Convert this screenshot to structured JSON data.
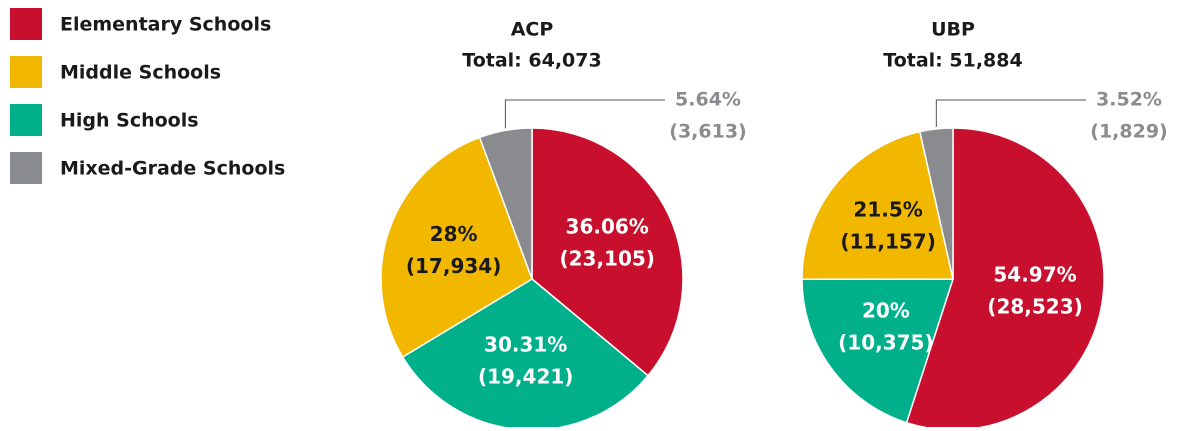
{
  "legend": {
    "items": [
      {
        "name": "Elementary Schools",
        "color": "#c8102e"
      },
      {
        "name": "Middle Schools",
        "color": "#f2b800"
      },
      {
        "name": "High Schools",
        "color": "#00b08b"
      },
      {
        "name": "Mixed-Grade Schools",
        "color": "#898b8e"
      }
    ]
  },
  "chart_data": [
    {
      "type": "pie",
      "title": "ACP",
      "subtitle": "Total: 64,073",
      "categories": [
        "Elementary Schools",
        "High Schools",
        "Middle Schools",
        "Mixed-Grade Schools"
      ],
      "values": [
        36.06,
        30.31,
        28,
        5.64
      ],
      "value_labels": [
        "36.06%",
        "30.31%",
        "28%",
        "5.64%"
      ],
      "counts": [
        23105,
        19421,
        17934,
        3613
      ],
      "count_labels": [
        "(23,105)",
        "(19,421)",
        "(17,934)",
        "(3,613)"
      ]
    },
    {
      "type": "pie",
      "title": "UBP",
      "subtitle": "Total: 51,884",
      "categories": [
        "Elementary Schools",
        "High Schools",
        "Middle Schools",
        "Mixed-Grade Schools"
      ],
      "values": [
        54.97,
        20,
        21.5,
        3.52
      ],
      "value_labels": [
        "54.97%",
        "20%",
        "21.5%",
        "3.52%"
      ],
      "counts": [
        28523,
        10375,
        11157,
        1829
      ],
      "count_labels": [
        "(28,523)",
        "(10,375)",
        "(11,157)",
        "(1,829)"
      ]
    }
  ]
}
